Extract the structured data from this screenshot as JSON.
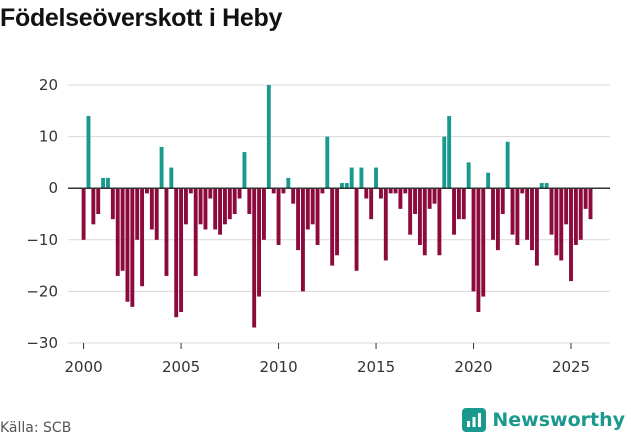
{
  "chart_data": {
    "type": "bar",
    "title": "Födelseöverskott i Heby",
    "xlabel": "",
    "ylabel": "",
    "ylim": [
      -30,
      20
    ],
    "yticks": [
      20,
      10,
      0,
      -10,
      -20,
      -30
    ],
    "yticks_text": [
      "20",
      "10",
      "0",
      "−10",
      "−20",
      "−30"
    ],
    "xticks": [
      2000,
      2005,
      2010,
      2015,
      2020,
      2025
    ],
    "xlim": [
      1999.2,
      2027.0
    ],
    "positive_color": "#1a9a8e",
    "negative_color": "#8c0a3c",
    "x_start": 2000.0,
    "x_step": 0.25,
    "values": [
      -10,
      14,
      -7,
      -5,
      2,
      2,
      -6,
      -17,
      -16,
      -22,
      -23,
      -10,
      -19,
      -1,
      -8,
      -10,
      8,
      -17,
      4,
      -25,
      -24,
      -7,
      -1,
      -17,
      -7,
      -8,
      -2,
      -8,
      -9,
      -7,
      -6,
      -5,
      -2,
      7,
      -5,
      -27,
      -21,
      -10,
      20,
      -1,
      -11,
      -1,
      2,
      -3,
      -12,
      -20,
      -8,
      -7,
      -11,
      -1,
      10,
      -15,
      -13,
      1,
      1,
      4,
      -16,
      4,
      -2,
      -6,
      4,
      -2,
      -14,
      -1,
      -1,
      -4,
      -1,
      -9,
      -5,
      -11,
      -13,
      -4,
      -3,
      -13,
      10,
      14,
      -9,
      -6,
      -6,
      5,
      -20,
      -24,
      -21,
      3,
      -10,
      -12,
      -5,
      9,
      -9,
      -11,
      -1,
      -10,
      -12,
      -15,
      1,
      1,
      -9,
      -13,
      -14,
      -7,
      -18,
      -11,
      -10,
      -4,
      -6
    ]
  },
  "source": "Källa: SCB",
  "brand": {
    "name": "Newsworthy",
    "icon": "bar-chart-icon",
    "color": "#1a9a8e"
  }
}
